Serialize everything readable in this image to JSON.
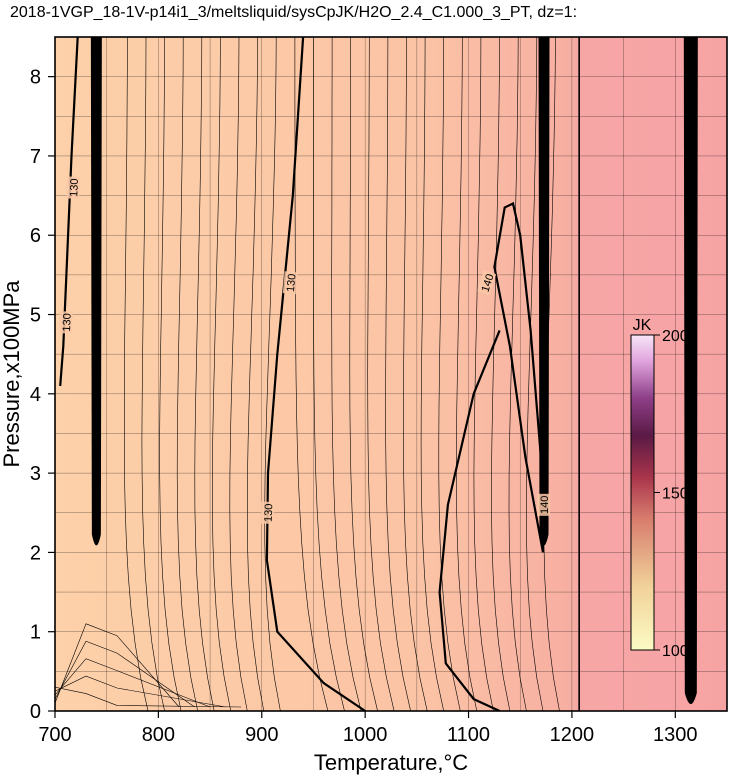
{
  "chart_data": {
    "type": "heatmap",
    "title": "2018-1VGP_18-1V-p14i1_3/meltsliquid/sysCpJK/H2O_2.4_C1.000_3_PT, dz=1:",
    "xlabel": "Temperature,°C",
    "ylabel": "Pressure,x100MPa",
    "xlim": [
      700,
      1350
    ],
    "ylim": [
      0,
      8.5
    ],
    "xticks": [
      700,
      800,
      900,
      1000,
      1100,
      1200,
      1300
    ],
    "yticks": [
      0,
      1,
      2,
      3,
      4,
      5,
      6,
      7,
      8
    ],
    "grid": true,
    "colorbar": {
      "label": "JK",
      "ticks": [
        100,
        150,
        200
      ],
      "range": [
        100,
        200
      ],
      "placement": "right-inside"
    },
    "contour_labels": [
      {
        "text": "130",
        "x": 718,
        "y": 6.6,
        "rot": -88
      },
      {
        "text": "130",
        "x": 711,
        "y": 4.9,
        "rot": -88
      },
      {
        "text": "130",
        "x": 928,
        "y": 5.4,
        "rot": -85
      },
      {
        "text": "130",
        "x": 906,
        "y": 2.5,
        "rot": -88
      },
      {
        "text": "140",
        "x": 1118,
        "y": 5.4,
        "rot": -72
      },
      {
        "text": "140",
        "x": 1173,
        "y": 2.6,
        "rot": -90
      }
    ],
    "colors": {
      "field_cool": "#fdd0a8",
      "field_warm": "#f8b1a2",
      "field_hot": "#f7a5a5",
      "contour": "#000000",
      "colorbar_low": "#fbfbc4",
      "colorbar_mid": "#b03a52",
      "colorbar_high": "#f6dcf7"
    },
    "boundaries": [
      {
        "name": "solidus-band",
        "x": 740,
        "p_min": 2.0
      },
      {
        "name": "phase-band",
        "x": 1173,
        "p_min": 2.0
      },
      {
        "name": "phase-line",
        "x": 1207,
        "p_min": 0.0
      },
      {
        "name": "liquidus-band",
        "x": 1315,
        "p_min": 0.0
      }
    ]
  }
}
